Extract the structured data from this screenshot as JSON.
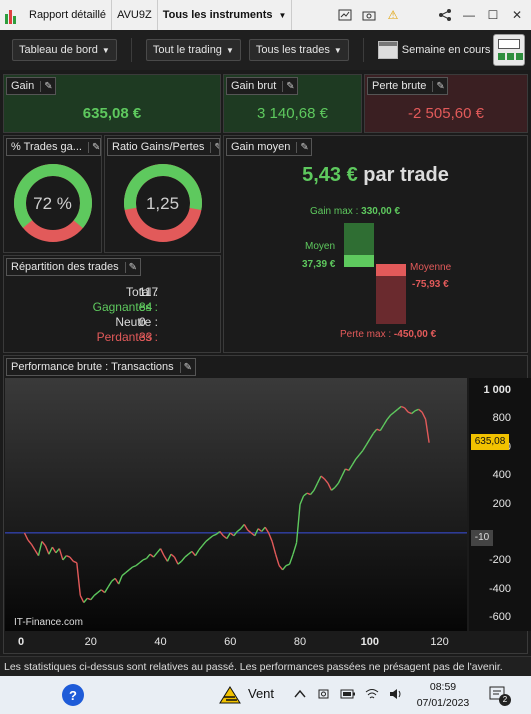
{
  "titlebar": {
    "report_label": "Rapport détaillé",
    "ticker": "AVU9Z",
    "instruments_label": "Tous les instruments",
    "warning_glyph": "⚠",
    "share_glyph": "⋖",
    "minimize_glyph": "—",
    "maximize_glyph": "☐",
    "close_glyph": "✕"
  },
  "toolbar": {
    "dashboard_label": "Tableau de bord",
    "trading_label": "Tout le trading",
    "trades_label": "Tous les trades",
    "period_label": "Semaine en cours"
  },
  "gain": {
    "title": "Gain",
    "value": "635,08 €"
  },
  "gross_gain": {
    "title": "Gain brut",
    "value": "3 140,68 €"
  },
  "gross_loss": {
    "title": "Perte brute",
    "value": "-2 505,60 €"
  },
  "win_rate": {
    "title": "% Trades ga...",
    "value": "72 %",
    "fraction": 0.72
  },
  "ratio": {
    "title": "Ratio Gains/Pertes",
    "value": "1,25",
    "fraction": 0.556
  },
  "avg_gain": {
    "title": "Gain moyen",
    "value": "5,43 €",
    "suffix": "par trade",
    "max_gain_label": "Gain max :",
    "max_gain_value": "330,00 €",
    "avg_win_label": "Moyen",
    "avg_win_value": "37,39 €",
    "avg_loss_label": "Moyenne",
    "avg_loss_value": "-75,93 €",
    "max_loss_label": "Perte max :",
    "max_loss_value": "-450,00 €"
  },
  "distribution": {
    "title": "Répartition des trades",
    "total_label": "Total :",
    "total_value": "117",
    "winners_label": "Gagnantes :",
    "winners_value": "84",
    "neutral_label": "Neutre :",
    "neutral_value": "0",
    "losers_label": "Perdantes :",
    "losers_value": "33"
  },
  "performance": {
    "title": "Performance brute : Transactions",
    "watermark": "IT-Finance.com",
    "last_value_badge": "635,08",
    "zero_badge": "-10"
  },
  "chart_data": {
    "type": "line",
    "x": [
      1,
      2,
      3,
      4,
      5,
      6,
      7,
      8,
      9,
      10,
      11,
      12,
      13,
      14,
      15,
      16,
      17,
      18,
      19,
      20,
      21,
      22,
      23,
      24,
      25,
      26,
      27,
      28,
      29,
      30,
      31,
      32,
      33,
      34,
      35,
      36,
      37,
      38,
      39,
      40,
      41,
      42,
      43,
      44,
      45,
      46,
      47,
      48,
      49,
      50,
      51,
      52,
      53,
      54,
      55,
      56,
      57,
      58,
      59,
      60,
      61,
      62,
      63,
      64,
      65,
      66,
      67,
      68,
      69,
      70,
      71,
      72,
      73,
      74,
      75,
      76,
      77,
      78,
      79,
      80,
      81,
      82,
      83,
      84,
      85,
      86,
      87,
      88,
      89,
      90,
      91,
      92,
      93,
      94,
      95,
      96,
      97,
      98,
      99,
      100,
      101,
      102,
      103,
      104,
      105,
      106,
      107,
      108,
      109,
      110,
      111,
      112,
      113,
      114,
      115,
      116,
      117
    ],
    "y": [
      0,
      -50,
      -80,
      -120,
      -160,
      -60,
      -90,
      -150,
      -100,
      -140,
      -110,
      -190,
      -160,
      -170,
      -200,
      -210,
      -440,
      -490,
      -460,
      -470,
      -440,
      -420,
      -400,
      -420,
      -380,
      -340,
      -320,
      -360,
      -300,
      -280,
      -260,
      -240,
      -230,
      -210,
      -190,
      -180,
      -150,
      -170,
      -140,
      -110,
      -160,
      -200,
      -150,
      -170,
      -220,
      -200,
      -170,
      -150,
      -130,
      -160,
      -120,
      -90,
      -60,
      -40,
      -20,
      -10,
      10,
      -20,
      -40,
      0,
      -20,
      10,
      30,
      60,
      20,
      0,
      -20,
      30,
      10,
      40,
      0,
      -60,
      -150,
      -230,
      -260,
      -230,
      -220,
      -150,
      -70,
      200,
      260,
      280,
      270,
      300,
      350,
      400,
      380,
      350,
      300,
      320,
      350,
      400,
      450,
      440,
      480,
      520,
      550,
      580,
      620,
      660,
      700,
      730,
      720,
      760,
      800,
      830,
      850,
      870,
      890,
      880,
      850,
      840,
      860,
      870,
      850,
      800,
      635
    ],
    "xlim": [
      0,
      125
    ],
    "ylim": [
      -620,
      1020
    ],
    "xticks": [
      0,
      20,
      40,
      60,
      80,
      100,
      120
    ],
    "yticks": [
      -600,
      -400,
      -200,
      0,
      200,
      400,
      600,
      800,
      1000
    ],
    "ytick_labels": [
      "-600",
      "-400",
      "-200",
      "",
      "200",
      "400",
      "600",
      "800",
      "1 000"
    ],
    "zero_line": 0,
    "up_color": "#5ec95e",
    "down_color": "#e25a5a",
    "zero_line_color": "#3a4fe0"
  },
  "disclaimer": "Les statistiques ci-dessus sont relatives au passé. Les performances passées ne présagent pas de l'avenir.",
  "taskbar": {
    "weather_label": "Vent",
    "time": "08:59",
    "date": "07/01/2023",
    "notif_count": "2"
  },
  "colors": {
    "green": "#5ec95e",
    "red": "#e25a5a",
    "green_panel": "#1e3a22",
    "red_panel": "#3a1f22",
    "accent_yellow": "#f2c200"
  }
}
